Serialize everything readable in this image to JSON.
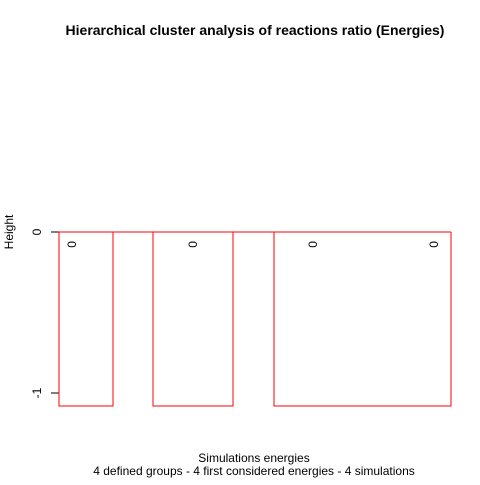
{
  "chart_data": {
    "type": "dendrogram",
    "title": "Hierarchical cluster analysis of reactions ratio (Energies)",
    "xlabel": "Simulations energies",
    "subtitle": "4 defined groups - 4 first considered energies - 4 simulations",
    "ylabel": "Height",
    "y_ticks": [
      0,
      -1
    ],
    "ylim": [
      -1.08,
      0
    ],
    "leaf_labels": [
      "0",
      "0",
      "0",
      "0"
    ],
    "groups": 4,
    "merge_height": 0,
    "colors": {
      "tree": "#000000",
      "cluster_boxes": "#ff0000",
      "cut_line": "#ff0000"
    }
  }
}
